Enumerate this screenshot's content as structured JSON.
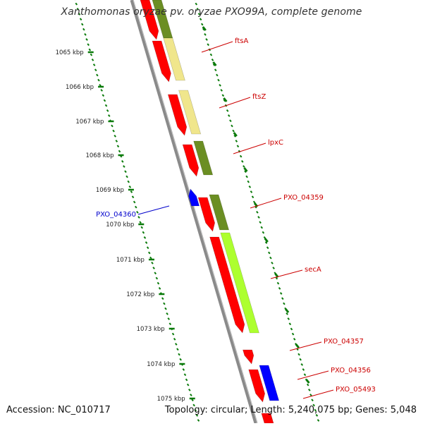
{
  "title": "Xanthomonas oryzae pv. oryzae PXO99A, complete genome",
  "accession": "Accession: NC_010717",
  "summary": "Topology: circular; Length: 5,240,075 bp; Genes: 5,048",
  "colors": {
    "backbone": "#8a8a8a",
    "gene_red": "#ff0000",
    "gene_blue": "#0000ff",
    "tick_green": "#0a7a0a",
    "cog_olive": "#6b8e23",
    "cog_khaki": "#f0e68c",
    "cog_lime": "#adff2f",
    "label_red": "#cc0000",
    "label_blue": "#0000cc"
  },
  "scale_labels": [
    "1065 kbp",
    "1066 kbp",
    "1067 kbp",
    "1068 kbp",
    "1069 kbp",
    "1070 kbp",
    "1071 kbp",
    "1072 kbp",
    "1073 kbp",
    "1074 kbp",
    "1075 kbp"
  ],
  "genes": [
    {
      "label": "ftsA",
      "strand": "reverse",
      "cog_color": "khaki"
    },
    {
      "label": "ftsZ",
      "strand": "reverse",
      "cog_color": "khaki"
    },
    {
      "label": "lpxC",
      "strand": "reverse",
      "cog_color": "olive"
    },
    {
      "label": "PXO_04359",
      "strand": "reverse",
      "cog_color": "olive"
    },
    {
      "label": "secA",
      "strand": "reverse",
      "cog_color": "lime"
    },
    {
      "label": "PXO_04357",
      "strand": "reverse",
      "cog_color": "none"
    },
    {
      "label": "PXO_04356",
      "strand": "reverse",
      "cog_color": "blue"
    },
    {
      "label": "PXO_05493",
      "strand": "reverse",
      "cog_color": "none"
    },
    {
      "label": "PXO_04360",
      "strand": "forward",
      "cog_color": "none"
    }
  ]
}
